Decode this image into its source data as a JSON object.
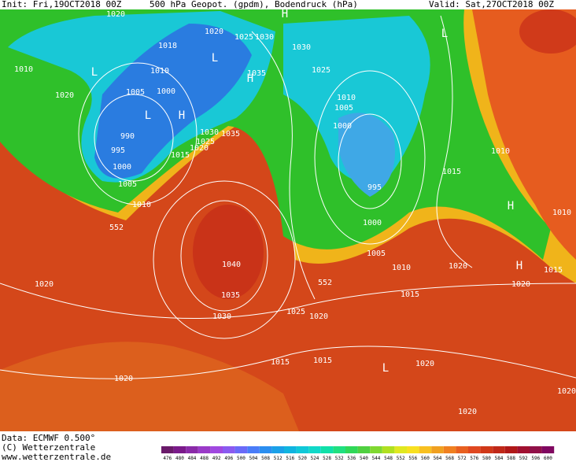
{
  "header": {
    "init": "Init: Fri,19OCT2018 00Z",
    "title": "500 hPa Geopot. (gpdm), Bodendruck (hPa)",
    "valid": "Valid: Sat,27OCT2018 00Z"
  },
  "map": {
    "labels": [
      "1020",
      "1020",
      "1025",
      "1030",
      "H",
      "1018",
      "L",
      "1010",
      "L",
      "1010",
      "1030",
      "1025",
      "L",
      "H",
      "1035",
      "1020",
      "1005",
      "1000",
      "1010",
      "1005",
      "L",
      "H",
      "1030",
      "1035",
      "1000",
      "990",
      "1025",
      "1020",
      "995",
      "1015",
      "1010",
      "1000",
      "1015",
      "1005",
      "995",
      "1010",
      "H",
      "1010",
      "1000",
      "552",
      "1040",
      "1005",
      "1010",
      "1020",
      "H",
      "1015",
      "1020",
      "552",
      "1020",
      "1035",
      "1015",
      "1025",
      "1030",
      "1020",
      "1015",
      "1015",
      "L",
      "1020",
      "1020",
      "1020",
      "1020"
    ]
  },
  "footer": {
    "data": "Data: ECMWF  0.500°",
    "copyright": "(C) Wetterzentrale",
    "url": "www.wetterzentrale.de"
  },
  "colorbar": {
    "labels": [
      476,
      480,
      484,
      488,
      492,
      496,
      500,
      504,
      508,
      512,
      516,
      520,
      524,
      528,
      532,
      536,
      540,
      544,
      548,
      552,
      556,
      560,
      564,
      568,
      572,
      576,
      580,
      584,
      588,
      592,
      596,
      600
    ]
  }
}
